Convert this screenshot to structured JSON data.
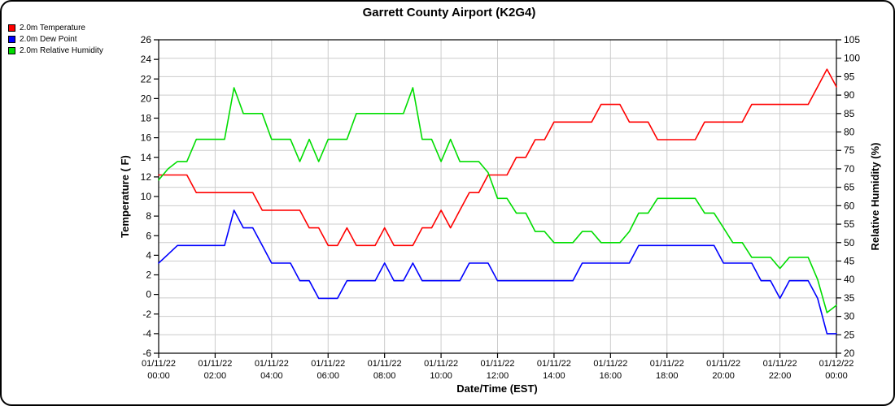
{
  "title": "Garrett County Airport (K2G4)",
  "legend": {
    "items": [
      {
        "label": "2.0m Temperature",
        "color": "#ff0000"
      },
      {
        "label": "2.0m Dew Point",
        "color": "#0000ff"
      },
      {
        "label": "2.0m Relative Humidity",
        "color": "#00dd00"
      }
    ]
  },
  "chart_data": {
    "type": "line",
    "title": "Garrett County Airport (K2G4)",
    "xlabel": "Date/Time (EST)",
    "x_unit": "minutes since 01/11/22 00:00 EST",
    "axes": {
      "left": {
        "label": "Temperature ( F)",
        "min": -6,
        "max": 26,
        "tick_step": 2
      },
      "right": {
        "label": "Relative Humidity (%)",
        "min": 20,
        "max": 105,
        "tick_step": 5
      }
    },
    "grid": {
      "color": "#cccccc"
    },
    "x_ticks": [
      {
        "min": 0,
        "date": "01/11/22",
        "time": "00:00"
      },
      {
        "min": 120,
        "date": "01/11/22",
        "time": "02:00"
      },
      {
        "min": 240,
        "date": "01/11/22",
        "time": "04:00"
      },
      {
        "min": 360,
        "date": "01/11/22",
        "time": "06:00"
      },
      {
        "min": 480,
        "date": "01/11/22",
        "time": "08:00"
      },
      {
        "min": 600,
        "date": "01/11/22",
        "time": "10:00"
      },
      {
        "min": 720,
        "date": "01/11/22",
        "time": "12:00"
      },
      {
        "min": 840,
        "date": "01/11/22",
        "time": "14:00"
      },
      {
        "min": 960,
        "date": "01/11/22",
        "time": "16:00"
      },
      {
        "min": 1080,
        "date": "01/11/22",
        "time": "18:00"
      },
      {
        "min": 1200,
        "date": "01/11/22",
        "time": "20:00"
      },
      {
        "min": 1320,
        "date": "01/11/22",
        "time": "22:00"
      },
      {
        "min": 1440,
        "date": "01/12/22",
        "time": "00:00"
      }
    ],
    "times": [
      0,
      20,
      40,
      60,
      80,
      100,
      120,
      140,
      160,
      180,
      200,
      220,
      240,
      260,
      280,
      300,
      320,
      340,
      360,
      380,
      400,
      420,
      440,
      460,
      480,
      500,
      520,
      540,
      560,
      580,
      600,
      620,
      640,
      660,
      680,
      700,
      720,
      740,
      760,
      780,
      800,
      820,
      840,
      860,
      880,
      900,
      920,
      940,
      960,
      980,
      1000,
      1020,
      1040,
      1060,
      1080,
      1100,
      1120,
      1140,
      1160,
      1180,
      1200,
      1220,
      1240,
      1260,
      1280,
      1300,
      1320,
      1340,
      1360,
      1380,
      1400,
      1420,
      1440
    ],
    "series": [
      {
        "name": "2.0m Temperature",
        "color": "#ff0000",
        "axis": "left",
        "unit": "F",
        "values": [
          12.2,
          12.2,
          12.2,
          12.2,
          10.4,
          10.4,
          10.4,
          10.4,
          10.4,
          10.4,
          10.4,
          8.6,
          8.6,
          8.6,
          8.6,
          8.6,
          6.8,
          6.8,
          5.0,
          5.0,
          6.8,
          5.0,
          5.0,
          5.0,
          6.8,
          5.0,
          5.0,
          5.0,
          6.8,
          6.8,
          8.6,
          6.8,
          8.6,
          10.4,
          10.4,
          12.2,
          12.2,
          12.2,
          14.0,
          14.0,
          15.8,
          15.8,
          17.6,
          17.6,
          17.6,
          17.6,
          17.6,
          19.4,
          19.4,
          19.4,
          17.6,
          17.6,
          17.6,
          15.8,
          15.8,
          15.8,
          15.8,
          15.8,
          17.6,
          17.6,
          17.6,
          17.6,
          17.6,
          19.4,
          19.4,
          19.4,
          19.4,
          19.4,
          19.4,
          19.4,
          21.2,
          23.0,
          21.2
        ]
      },
      {
        "name": "2.0m Dew Point",
        "color": "#0000ff",
        "axis": "left",
        "unit": "F",
        "values": [
          3.2,
          4.1,
          5.0,
          5.0,
          5.0,
          5.0,
          5.0,
          5.0,
          8.6,
          6.8,
          6.8,
          5.0,
          3.2,
          3.2,
          3.2,
          1.4,
          1.4,
          -0.4,
          -0.4,
          -0.4,
          1.4,
          1.4,
          1.4,
          1.4,
          3.2,
          1.4,
          1.4,
          3.2,
          1.4,
          1.4,
          1.4,
          1.4,
          1.4,
          3.2,
          3.2,
          3.2,
          1.4,
          1.4,
          1.4,
          1.4,
          1.4,
          1.4,
          1.4,
          1.4,
          1.4,
          3.2,
          3.2,
          3.2,
          3.2,
          3.2,
          3.2,
          5.0,
          5.0,
          5.0,
          5.0,
          5.0,
          5.0,
          5.0,
          5.0,
          5.0,
          3.2,
          3.2,
          3.2,
          3.2,
          1.4,
          1.4,
          -0.4,
          1.4,
          1.4,
          1.4,
          -0.4,
          -4.0,
          -4.0
        ]
      },
      {
        "name": "2.0m Relative Humidity",
        "color": "#00dd00",
        "axis": "right",
        "unit": "%",
        "values": [
          67,
          70,
          72,
          72,
          78,
          78,
          78,
          78,
          92,
          85,
          85,
          85,
          78,
          78,
          78,
          72,
          78,
          72,
          78,
          78,
          78,
          85,
          85,
          85,
          85,
          85,
          85,
          92,
          78,
          78,
          72,
          78,
          72,
          72,
          72,
          69,
          62,
          62,
          58,
          58,
          53,
          53,
          50,
          50,
          50,
          53,
          53,
          50,
          50,
          50,
          53,
          58,
          58,
          62,
          62,
          62,
          62,
          62,
          58,
          58,
          54,
          50,
          50,
          46,
          46,
          46,
          43,
          46,
          46,
          46,
          40,
          31,
          33
        ]
      }
    ]
  }
}
